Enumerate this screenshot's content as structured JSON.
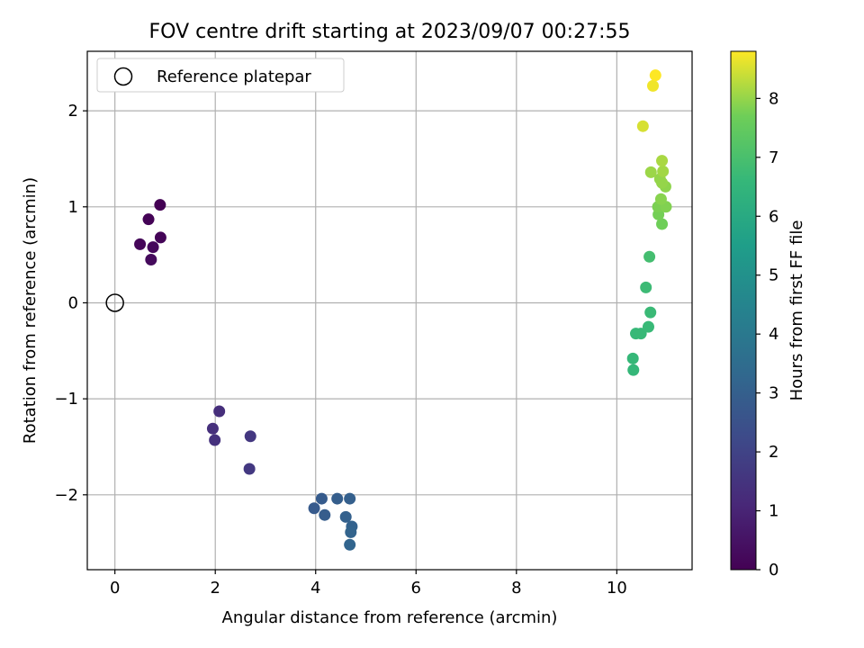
{
  "chart_data": {
    "type": "scatter",
    "title": "FOV centre drift starting at 2023/09/07 00:27:55",
    "xlabel": "Angular distance from reference (arcmin)",
    "ylabel": "Rotation from reference (arcmin)",
    "xlim": [
      -0.55,
      11.5
    ],
    "ylim": [
      -2.78,
      2.62
    ],
    "xticks": [
      0,
      2,
      4,
      6,
      8,
      10
    ],
    "yticks": [
      -2,
      -1,
      0,
      1,
      2
    ],
    "xtick_labels": [
      "0",
      "2",
      "4",
      "6",
      "8",
      "10"
    ],
    "ytick_labels": [
      "−2",
      "−1",
      "0",
      "1",
      "2"
    ],
    "grid": true,
    "legend": {
      "placement": "top-left",
      "entries": [
        {
          "label": "Reference platepar",
          "marker": "open-circle",
          "color": "#000000"
        }
      ]
    },
    "reference_point": {
      "x": 0,
      "y": 0
    },
    "colorbar": {
      "label": "Hours from first FF file",
      "colormap": "viridis",
      "range": [
        0,
        8.8
      ],
      "ticks": [
        0,
        1,
        2,
        3,
        4,
        5,
        6,
        7,
        8
      ],
      "tick_labels": [
        "0",
        "1",
        "2",
        "3",
        "4",
        "5",
        "6",
        "7",
        "8"
      ]
    },
    "points": [
      {
        "x": 0.9,
        "y": 1.02,
        "c": 0.0
      },
      {
        "x": 0.67,
        "y": 0.87,
        "c": 0.05
      },
      {
        "x": 0.91,
        "y": 0.68,
        "c": 0.1
      },
      {
        "x": 0.5,
        "y": 0.61,
        "c": 0.15
      },
      {
        "x": 0.76,
        "y": 0.58,
        "c": 0.2
      },
      {
        "x": 0.72,
        "y": 0.45,
        "c": 0.25
      },
      {
        "x": 2.08,
        "y": -1.13,
        "c": 1.3
      },
      {
        "x": 1.95,
        "y": -1.31,
        "c": 1.35
      },
      {
        "x": 1.99,
        "y": -1.43,
        "c": 1.4
      },
      {
        "x": 2.7,
        "y": -1.39,
        "c": 1.6
      },
      {
        "x": 2.68,
        "y": -1.73,
        "c": 1.65
      },
      {
        "x": 3.97,
        "y": -2.14,
        "c": 2.8
      },
      {
        "x": 4.12,
        "y": -2.04,
        "c": 2.85
      },
      {
        "x": 4.18,
        "y": -2.21,
        "c": 2.9
      },
      {
        "x": 4.43,
        "y": -2.04,
        "c": 2.95
      },
      {
        "x": 4.68,
        "y": -2.04,
        "c": 3.0
      },
      {
        "x": 4.6,
        "y": -2.23,
        "c": 3.05
      },
      {
        "x": 4.72,
        "y": -2.33,
        "c": 3.1
      },
      {
        "x": 4.7,
        "y": -2.39,
        "c": 3.15
      },
      {
        "x": 4.68,
        "y": -2.52,
        "c": 3.2
      },
      {
        "x": 10.33,
        "y": -0.7,
        "c": 6.6
      },
      {
        "x": 10.32,
        "y": -0.58,
        "c": 6.62
      },
      {
        "x": 10.38,
        "y": -0.32,
        "c": 6.64
      },
      {
        "x": 10.48,
        "y": -0.32,
        "c": 6.66
      },
      {
        "x": 10.63,
        "y": -0.25,
        "c": 6.68
      },
      {
        "x": 10.67,
        "y": -0.1,
        "c": 6.7
      },
      {
        "x": 10.58,
        "y": 0.16,
        "c": 6.75
      },
      {
        "x": 10.65,
        "y": 0.48,
        "c": 6.9
      },
      {
        "x": 10.9,
        "y": 0.82,
        "c": 7.7
      },
      {
        "x": 10.83,
        "y": 0.92,
        "c": 7.75
      },
      {
        "x": 10.82,
        "y": 1.0,
        "c": 7.8
      },
      {
        "x": 10.98,
        "y": 1.0,
        "c": 7.85
      },
      {
        "x": 10.88,
        "y": 1.08,
        "c": 7.9
      },
      {
        "x": 10.97,
        "y": 1.21,
        "c": 7.95
      },
      {
        "x": 10.9,
        "y": 1.25,
        "c": 8.0
      },
      {
        "x": 10.86,
        "y": 1.29,
        "c": 8.0
      },
      {
        "x": 10.68,
        "y": 1.36,
        "c": 8.05
      },
      {
        "x": 10.92,
        "y": 1.37,
        "c": 8.1
      },
      {
        "x": 10.9,
        "y": 1.48,
        "c": 8.15
      },
      {
        "x": 10.52,
        "y": 1.84,
        "c": 8.5
      },
      {
        "x": 10.72,
        "y": 2.26,
        "c": 8.7
      },
      {
        "x": 10.77,
        "y": 2.37,
        "c": 8.8
      }
    ]
  }
}
